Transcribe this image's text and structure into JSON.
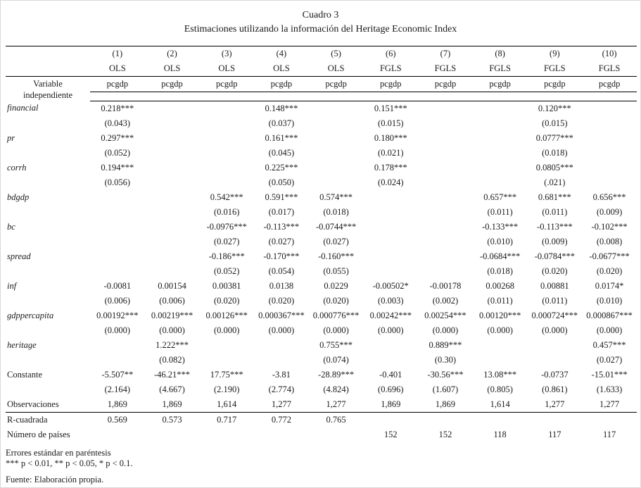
{
  "title": "Cuadro 3",
  "subtitle": "Estimaciones utilizando la información del Heritage Economic Index",
  "table": {
    "column_numbers": [
      "(1)",
      "(2)",
      "(3)",
      "(4)",
      "(5)",
      "(6)",
      "(7)",
      "(8)",
      "(9)",
      "(10)"
    ],
    "estimators": [
      "OLS",
      "OLS",
      "OLS",
      "OLS",
      "OLS",
      "FGLS",
      "FGLS",
      "FGLS",
      "FGLS",
      "FGLS"
    ],
    "stub_header": [
      "Variable",
      "independiente"
    ],
    "dep_var": [
      "pcgdp",
      "pcgdp",
      "pcgdp",
      "pcgdp",
      "pcgdp",
      "pcgdp",
      "pcgdp",
      "pcgdp",
      "pcgdp",
      "pcgdp"
    ],
    "coef_rows": [
      {
        "label": "financial",
        "italic": true,
        "coef": [
          "0.218***",
          "",
          "",
          "0.148***",
          "",
          "0.151***",
          "",
          "",
          "0.120***",
          ""
        ],
        "se": [
          "(0.043)",
          "",
          "",
          "(0.037)",
          "",
          "(0.015)",
          "",
          "",
          "(0.015)",
          ""
        ]
      },
      {
        "label": "pr",
        "italic": true,
        "coef": [
          "0.297***",
          "",
          "",
          "0.161***",
          "",
          "0.180***",
          "",
          "",
          "0.0777***",
          ""
        ],
        "se": [
          "(0.052)",
          "",
          "",
          "(0.045)",
          "",
          "(0.021)",
          "",
          "",
          "(0.018)",
          ""
        ]
      },
      {
        "label": "corrh",
        "italic": true,
        "coef": [
          "0.194***",
          "",
          "",
          "0.225***",
          "",
          "0.178***",
          "",
          "",
          "0.0805***",
          ""
        ],
        "se": [
          "(0.056)",
          "",
          "",
          "(0.050)",
          "",
          "(0.024)",
          "",
          "",
          "(.021)",
          ""
        ]
      },
      {
        "label": "bdgdp",
        "italic": true,
        "coef": [
          "",
          "",
          "0.542***",
          "0.591***",
          "0.574***",
          "",
          "",
          "0.657***",
          "0.681***",
          "0.656***"
        ],
        "se": [
          "",
          "",
          "(0.016)",
          "(0.017)",
          "(0.018)",
          "",
          "",
          "(0.011)",
          "(0.011)",
          "(0.009)"
        ]
      },
      {
        "label": "bc",
        "italic": true,
        "coef": [
          "",
          "",
          "-0.0976***",
          "-0.113***",
          "-0.0744***",
          "",
          "",
          "-0.133***",
          "-0.113***",
          "-0.102***"
        ],
        "se": [
          "",
          "",
          "(0.027)",
          "(0.027)",
          "(0.027)",
          "",
          "",
          "(0.010)",
          "(0.009)",
          "(0.008)"
        ]
      },
      {
        "label": "spread",
        "italic": true,
        "coef": [
          "",
          "",
          "-0.186***",
          "-0.170***",
          "-0.160***",
          "",
          "",
          "-0.0684***",
          "-0.0784***",
          "-0.0677***"
        ],
        "se": [
          "",
          "",
          "(0.052)",
          "(0.054)",
          "(0.055)",
          "",
          "",
          "(0.018)",
          "(0.020)",
          "(0.020)"
        ]
      },
      {
        "label": "inf",
        "italic": true,
        "coef": [
          "-0.0081",
          "0.00154",
          "0.00381",
          "0.0138",
          "0.0229",
          "-0.00502*",
          "-0.00178",
          "0.00268",
          "0.00881",
          "0.0174*"
        ],
        "se": [
          "(0.006)",
          "(0.006)",
          "(0.020)",
          "(0.020)",
          "(0.020)",
          "(0.003)",
          "(0.002)",
          "(0.011)",
          "(0.011)",
          "(0.010)"
        ]
      },
      {
        "label": "gdppercapita",
        "italic": true,
        "coef": [
          "0.00192***",
          "0.00219***",
          "0.00126***",
          "0.000367***",
          "0.000776***",
          "0.00242***",
          "0.00254***",
          "0.00120***",
          "0.000724***",
          "0.000867***"
        ],
        "se": [
          "(0.000)",
          "(0.000)",
          "(0.000)",
          "(0.000)",
          "(0.000)",
          "(0.000)",
          "(0.000)",
          "(0.000)",
          "(0.000)",
          "(0.000)"
        ]
      },
      {
        "label": "heritage",
        "italic": true,
        "coef": [
          "",
          "1.222***",
          "",
          "",
          "0.755***",
          "",
          "0.889***",
          "",
          "",
          "0.457***"
        ],
        "se": [
          "",
          "(0.082)",
          "",
          "",
          "(0.074)",
          "",
          "(0.30)",
          "",
          "",
          "(0.027)"
        ]
      },
      {
        "label": "Constante",
        "italic": false,
        "coef": [
          "-5.507**",
          "-46.21***",
          "17.75***",
          "-3.81",
          "-28.89***",
          "-0.401",
          "-30.56***",
          "13.08***",
          "-0.0737",
          "-15.01***"
        ],
        "se": [
          "(2.164)",
          "(4.667)",
          "(2.190)",
          "(2.774)",
          "(4.824)",
          "(0.696)",
          "(1.607)",
          "(0.805)",
          "(0.861)",
          "(1.633)"
        ]
      }
    ],
    "stat_rows": [
      {
        "label": "Observaciones",
        "rule_below": true,
        "values": [
          "1,869",
          "1,869",
          "1,614",
          "1,277",
          "1,277",
          "1,869",
          "1,869",
          "1,614",
          "1,277",
          "1,277"
        ]
      },
      {
        "label": "R-cuadrada",
        "rule_below": false,
        "values": [
          "0.569",
          "0.573",
          "0.717",
          "0.772",
          "0.765",
          "",
          "",
          "",
          "",
          ""
        ]
      },
      {
        "label": "Número de países",
        "rule_below": false,
        "values": [
          "",
          "",
          "",
          "",
          "",
          "152",
          "152",
          "118",
          "117",
          "117"
        ]
      }
    ]
  },
  "footnotes": {
    "se_note": "Errores estándar en paréntesis",
    "significance_note": "*** p < 0.01, ** p < 0.05, * p < 0.1.",
    "source_note": "Fuente: Elaboración propia."
  }
}
